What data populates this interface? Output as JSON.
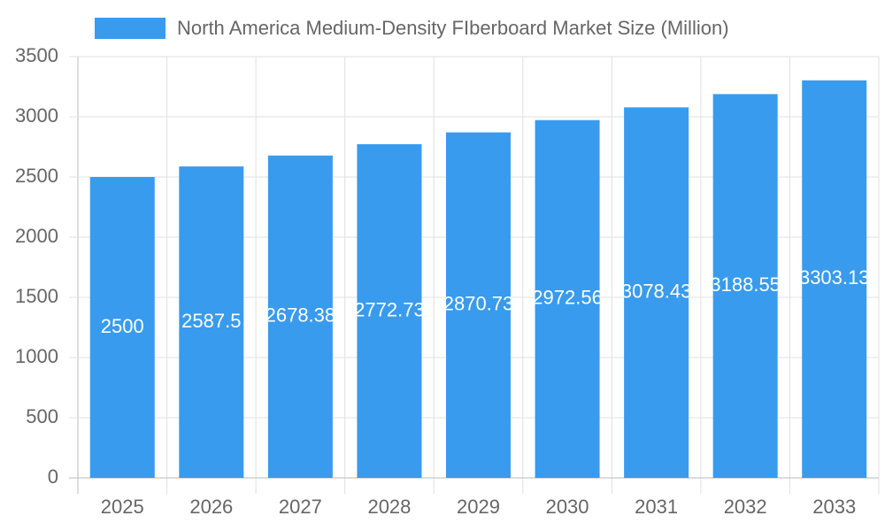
{
  "chart_data": {
    "type": "bar",
    "categories": [
      "2025",
      "2026",
      "2027",
      "2028",
      "2029",
      "2030",
      "2031",
      "2032",
      "2033"
    ],
    "series": [
      {
        "name": "North America Medium-Density FIberboard Market Size (Million)",
        "color": "#389bee",
        "values": [
          2500,
          2587.5,
          2678.38,
          2772.73,
          2870.73,
          2972.56,
          3078.43,
          3188.55,
          3303.13
        ]
      }
    ],
    "ylim": [
      0,
      3500
    ],
    "yticks": [
      0,
      500,
      1000,
      1500,
      2000,
      2500,
      3000,
      3500
    ],
    "grid": true
  }
}
